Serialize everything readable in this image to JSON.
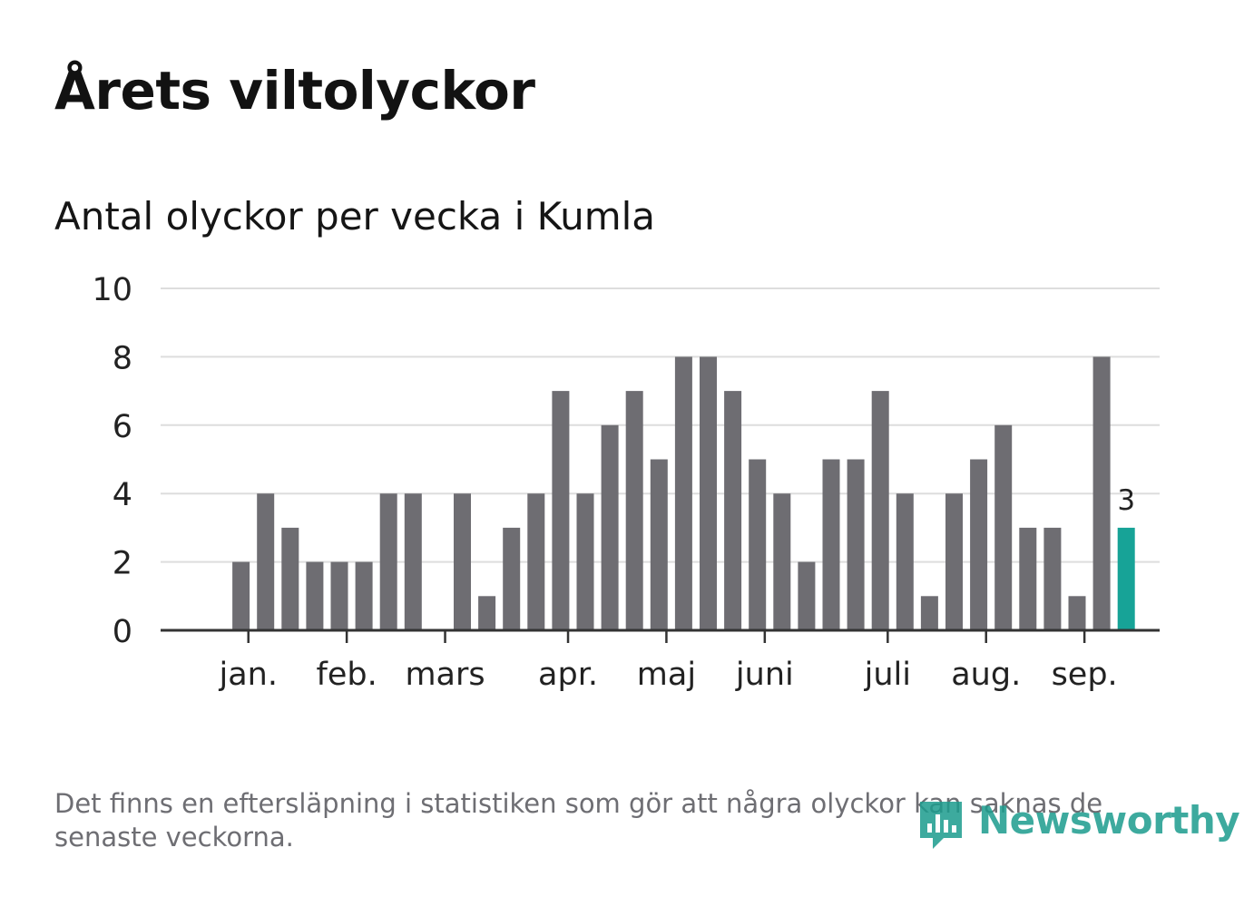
{
  "title": "Årets viltolyckor",
  "subtitle": "Antal olyckor per vecka i Kumla",
  "footnote": "Det finns en eftersläpning i statistiken som gör att några olyckor kan saknas de senaste veckorna.",
  "logo": {
    "text": "Newsworthy",
    "icon": "chart-bubble-icon"
  },
  "colors": {
    "bar": "#6e6d72",
    "highlight": "#17a397",
    "grid": "#dddddd",
    "axis": "#333333",
    "text": "#222222",
    "brand": "#1c9c8e"
  },
  "chart_data": {
    "type": "bar",
    "ylim": [
      0,
      10
    ],
    "yticks": [
      0,
      2,
      4,
      6,
      8,
      10
    ],
    "grid": true,
    "values": [
      0,
      2,
      4,
      3,
      2,
      2,
      2,
      4,
      4,
      0,
      4,
      1,
      3,
      4,
      7,
      4,
      6,
      7,
      5,
      8,
      8,
      7,
      5,
      4,
      2,
      5,
      5,
      7,
      4,
      1,
      4,
      5,
      6,
      3,
      3,
      1,
      8,
      3
    ],
    "highlight_last": true,
    "highlight_label": "3",
    "month_labels": [
      {
        "label": "jan.",
        "week": 1.3
      },
      {
        "label": "feb.",
        "week": 5.3
      },
      {
        "label": "mars",
        "week": 9.3
      },
      {
        "label": "apr.",
        "week": 14.3
      },
      {
        "label": "maj",
        "week": 18.3
      },
      {
        "label": "juni",
        "week": 22.3
      },
      {
        "label": "juli",
        "week": 27.3
      },
      {
        "label": "aug.",
        "week": 31.3
      },
      {
        "label": "sep.",
        "week": 35.3
      }
    ]
  }
}
